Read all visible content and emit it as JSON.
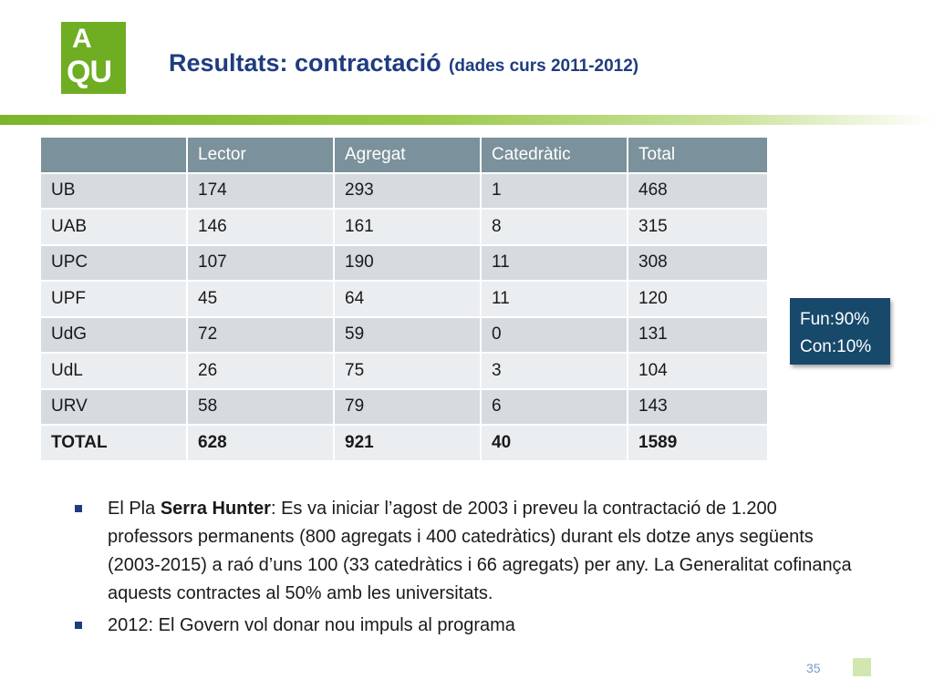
{
  "logo": {
    "line1": "A",
    "line2": "QU"
  },
  "title": {
    "main": "Resultats: contractació",
    "sub": "(dades curs 2011-2012)"
  },
  "table": {
    "headers": [
      "",
      "Lector",
      "Agregat",
      "Catedràtic",
      "Total"
    ],
    "rows": [
      [
        "UB",
        "174",
        "293",
        "1",
        "468"
      ],
      [
        "UAB",
        "146",
        "161",
        "8",
        "315"
      ],
      [
        "UPC",
        "107",
        "190",
        "11",
        "308"
      ],
      [
        "UPF",
        "45",
        "64",
        "11",
        "120"
      ],
      [
        "UdG",
        "72",
        "59",
        "0",
        "131"
      ],
      [
        "UdL",
        "26",
        "75",
        "3",
        "104"
      ],
      [
        "URV",
        "58",
        "79",
        "6",
        "143"
      ]
    ],
    "total": [
      "TOTAL",
      "628",
      "921",
      "40",
      "1589"
    ]
  },
  "badge": {
    "line1": "Fun:90%",
    "line2": "Con:10%"
  },
  "bullets": {
    "b1_pre": "El Pla ",
    "b1_bold": "Serra Hunter",
    "b1_rest": ": Es va iniciar l’agost de 2003 i preveu la contractació de 1.200  professors permanents (800 agregats i 400 catedràtics) durant els dotze anys següents (2003-2015) a raó d’uns 100 (33 catedràtics i 66 agregats) per any. La Generalitat cofinança aquests contractes al 50% amb les universitats.",
    "b2": "2012: El Govern vol donar  nou impuls al programa"
  },
  "page_number": "35",
  "colors": {
    "logo": "#6fad22",
    "title": "#1f3c80",
    "table_header": "#7b919b",
    "badge": "#17496b"
  }
}
